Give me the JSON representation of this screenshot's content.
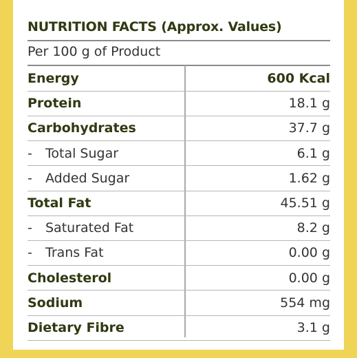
{
  "title": "NUTRITION FACTS (Approx. Values)",
  "subtitle": "Per 100 g of Product",
  "rows": [
    {
      "label": "Energy",
      "value": "600 Kcal",
      "bold": true,
      "bold_value": true,
      "sub": false
    },
    {
      "label": "Protein",
      "value": "18.1 g",
      "bold": true,
      "bold_value": false,
      "sub": false
    },
    {
      "label": "Carbohydrates",
      "value": "37.7 g",
      "bold": true,
      "bold_value": false,
      "sub": false
    },
    {
      "label": "Total Sugar",
      "value": "6.1 g",
      "bold": false,
      "bold_value": false,
      "sub": true
    },
    {
      "label": "Added Sugar",
      "value": "1.62 g",
      "bold": false,
      "bold_value": false,
      "sub": true
    },
    {
      "label": "Total Fat",
      "value": "45.51 g",
      "bold": true,
      "bold_value": false,
      "sub": false
    },
    {
      "label": "Saturated Fat",
      "value": "8.2 g",
      "bold": false,
      "bold_value": false,
      "sub": true
    },
    {
      "label": "Trans Fat",
      "value": "0.00 g",
      "bold": false,
      "bold_value": false,
      "sub": true
    },
    {
      "label": "Cholesterol",
      "value": "0.00 g",
      "bold": true,
      "bold_value": false,
      "sub": false
    },
    {
      "label": "Sodium",
      "value": "554 mg",
      "bold": true,
      "bold_value": false,
      "sub": false
    },
    {
      "label": "Dietary Fibre",
      "value": "3.1 g",
      "bold": true,
      "bold_value": false,
      "sub": false
    }
  ],
  "colors": {
    "background": "#f0d456",
    "panel": "#ffffff",
    "text": "#2f3a12"
  }
}
